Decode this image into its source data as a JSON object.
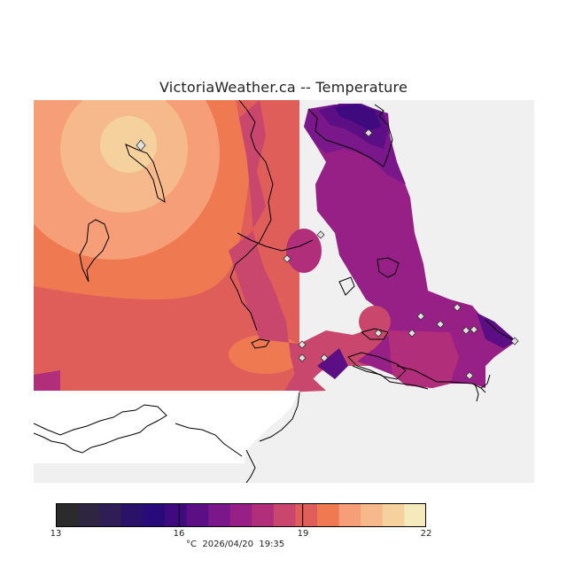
{
  "title": "VictoriaWeather.ca -- Temperature",
  "colorbar": {
    "min": 13,
    "max": 22,
    "tick_labels": [
      "13",
      "16",
      "19",
      "22"
    ],
    "colors": [
      "#2b2b2b",
      "#2e2540",
      "#2f1e55",
      "#2a1268",
      "#280a7a",
      "#3e0a7e",
      "#5c0f85",
      "#7a178a",
      "#962086",
      "#b12e7a",
      "#c9466d",
      "#df5e5a",
      "#ef7a52",
      "#f59e78",
      "#f5b98c",
      "#f5d19e",
      "#f5eabb"
    ],
    "unit_label": "°C",
    "timestamp": "2026/04/20  19:35"
  },
  "map": {
    "background_color": "#f0f0f0",
    "station_marker": "diamond-icon"
  }
}
